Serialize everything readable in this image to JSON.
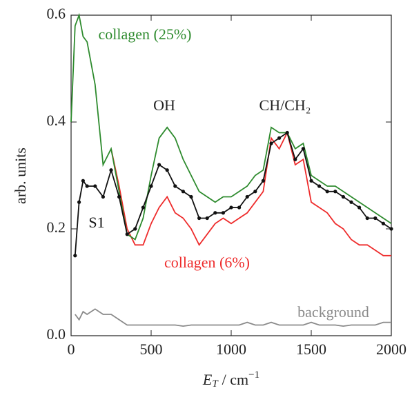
{
  "chart_data": {
    "type": "line",
    "ylabel": "arb. units",
    "xlabel": {
      "symbol": "E",
      "subscript": "T",
      "unit": "/ cm",
      "exponent": "−1"
    },
    "x": [
      0,
      25,
      50,
      75,
      100,
      150,
      200,
      250,
      300,
      350,
      400,
      450,
      500,
      550,
      600,
      650,
      700,
      750,
      800,
      850,
      900,
      950,
      1000,
      1050,
      1100,
      1150,
      1200,
      1250,
      1300,
      1350,
      1400,
      1450,
      1500,
      1550,
      1600,
      1650,
      1700,
      1750,
      1800,
      1850,
      1900,
      1950,
      2000
    ],
    "series": [
      {
        "name": "collagen (25%)",
        "color": "#2e8b2e",
        "markers": false,
        "values": [
          0.4,
          0.58,
          0.6,
          0.56,
          0.55,
          0.47,
          0.32,
          0.35,
          0.27,
          0.19,
          0.18,
          0.22,
          0.3,
          0.37,
          0.39,
          0.37,
          0.33,
          0.3,
          0.27,
          0.26,
          0.25,
          0.26,
          0.26,
          0.27,
          0.28,
          0.3,
          0.31,
          0.39,
          0.38,
          0.38,
          0.35,
          0.36,
          0.3,
          0.29,
          0.28,
          0.28,
          0.27,
          0.26,
          0.25,
          0.24,
          0.23,
          0.22,
          0.21
        ]
      },
      {
        "name": "S1",
        "color": "#111111",
        "markers": true,
        "values": [
          null,
          0.15,
          0.25,
          0.29,
          0.28,
          0.28,
          0.26,
          0.31,
          0.26,
          0.19,
          0.2,
          0.24,
          0.28,
          0.32,
          0.31,
          0.28,
          0.27,
          0.26,
          0.22,
          0.22,
          0.23,
          0.23,
          0.24,
          0.24,
          0.26,
          0.27,
          0.29,
          0.36,
          0.37,
          0.38,
          0.33,
          0.35,
          0.29,
          0.28,
          0.27,
          0.27,
          0.26,
          0.25,
          0.24,
          0.22,
          0.22,
          0.21,
          0.2
        ]
      },
      {
        "name": "collagen (6%)",
        "color": "#ee2b2b",
        "markers": false,
        "values": [
          null,
          null,
          null,
          null,
          null,
          null,
          null,
          0.35,
          0.28,
          0.2,
          0.17,
          0.17,
          0.21,
          0.24,
          0.26,
          0.23,
          0.22,
          0.2,
          0.17,
          0.19,
          0.21,
          0.22,
          0.21,
          0.22,
          0.23,
          0.25,
          0.27,
          0.37,
          0.35,
          0.38,
          0.32,
          0.33,
          0.25,
          0.24,
          0.23,
          0.21,
          0.2,
          0.18,
          0.17,
          0.17,
          0.16,
          0.15,
          0.15
        ]
      },
      {
        "name": "background",
        "color": "#8a8a8a",
        "markers": false,
        "values": [
          null,
          0.04,
          0.03,
          0.045,
          0.04,
          0.05,
          0.04,
          0.04,
          0.03,
          0.02,
          0.02,
          0.02,
          0.02,
          0.02,
          0.02,
          0.02,
          0.018,
          0.02,
          0.02,
          0.02,
          0.02,
          0.02,
          0.02,
          0.02,
          0.025,
          0.02,
          0.02,
          0.025,
          0.02,
          0.02,
          0.02,
          0.02,
          0.025,
          0.02,
          0.02,
          0.02,
          0.018,
          0.02,
          0.02,
          0.02,
          0.02,
          0.025,
          0.025
        ]
      }
    ],
    "annotations": [
      "OH",
      "CH/CH₂"
    ],
    "xlim": [
      0,
      2000
    ],
    "ylim": [
      0,
      0.6
    ],
    "xticks": [
      0,
      500,
      1000,
      1500,
      2000
    ],
    "yticks": [
      {
        "value": 0,
        "label": "0.0"
      },
      0.2,
      0.4,
      0.6
    ],
    "grid": false
  }
}
